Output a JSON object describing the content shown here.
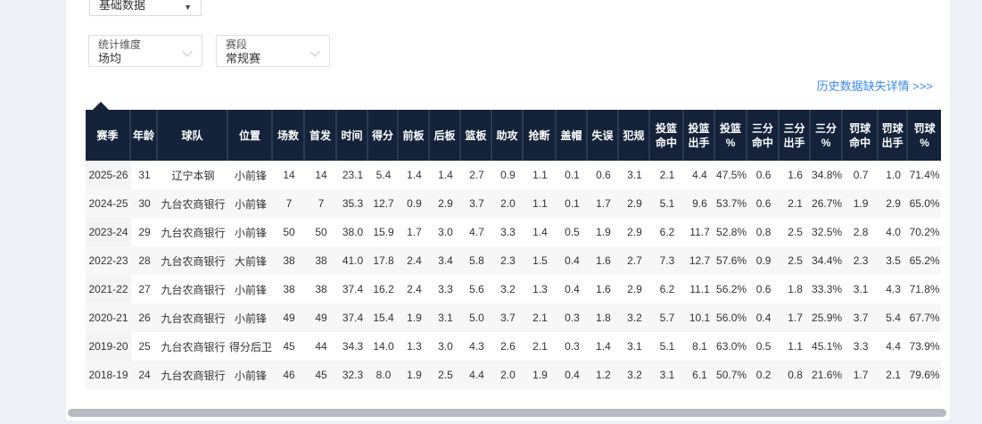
{
  "filters": {
    "base_data": {
      "value": "基础数据"
    },
    "dimension": {
      "label": "统计维度",
      "value": "场均"
    },
    "stage": {
      "label": "赛段",
      "value": "常规赛"
    }
  },
  "history_link": {
    "label": "历史数据缺失详情 >>>"
  },
  "colors": {
    "header_bg": "#142339",
    "link_blue": "#3d8af2",
    "accent_dark_navy": "#142339"
  },
  "icons": {
    "base_select_caret": "caret-down-icon",
    "dimension_caret": "chevron-down-icon",
    "stage_caret": "chevron-down-icon",
    "header_pointer": "caret-up-icon"
  },
  "table": {
    "columns": [
      "赛季",
      "年龄",
      "球队",
      "位置",
      "场数",
      "首发",
      "时间",
      "得分",
      "前板",
      "后板",
      "篮板",
      "助攻",
      "抢断",
      "盖帽",
      "失误",
      "犯规",
      "投篮\n命中",
      "投篮\n出手",
      "投篮\n%",
      "三分\n命中",
      "三分\n出手",
      "三分\n%",
      "罚球\n命中",
      "罚球\n出手",
      "罚球\n%"
    ],
    "rows": [
      [
        "2025-26",
        "31",
        "辽宁本钢",
        "小前锋",
        "14",
        "14",
        "23.1",
        "5.4",
        "1.4",
        "1.4",
        "2.7",
        "0.9",
        "1.1",
        "0.1",
        "0.6",
        "3.1",
        "2.1",
        "4.4",
        "47.5%",
        "0.6",
        "1.6",
        "34.8%",
        "0.7",
        "1.0",
        "71.4%"
      ],
      [
        "2024-25",
        "30",
        "九台农商银行",
        "小前锋",
        "7",
        "7",
        "35.3",
        "12.7",
        "0.9",
        "2.9",
        "3.7",
        "2.0",
        "1.1",
        "0.1",
        "1.7",
        "2.9",
        "5.1",
        "9.6",
        "53.7%",
        "0.6",
        "2.1",
        "26.7%",
        "1.9",
        "2.9",
        "65.0%"
      ],
      [
        "2023-24",
        "29",
        "九台农商银行",
        "小前锋",
        "50",
        "50",
        "38.0",
        "15.9",
        "1.7",
        "3.0",
        "4.7",
        "3.3",
        "1.4",
        "0.5",
        "1.9",
        "2.9",
        "6.2",
        "11.7",
        "52.8%",
        "0.8",
        "2.5",
        "32.5%",
        "2.8",
        "4.0",
        "70.2%"
      ],
      [
        "2022-23",
        "28",
        "九台农商银行",
        "大前锋",
        "38",
        "38",
        "41.0",
        "17.8",
        "2.4",
        "3.4",
        "5.8",
        "2.3",
        "1.5",
        "0.4",
        "1.6",
        "2.7",
        "7.3",
        "12.7",
        "57.6%",
        "0.9",
        "2.5",
        "34.4%",
        "2.3",
        "3.5",
        "65.2%"
      ],
      [
        "2021-22",
        "27",
        "九台农商银行",
        "小前锋",
        "38",
        "38",
        "37.4",
        "16.2",
        "2.4",
        "3.3",
        "5.6",
        "3.2",
        "1.3",
        "0.4",
        "1.6",
        "2.9",
        "6.2",
        "11.1",
        "56.2%",
        "0.6",
        "1.8",
        "33.3%",
        "3.1",
        "4.3",
        "71.8%"
      ],
      [
        "2020-21",
        "26",
        "九台农商银行",
        "小前锋",
        "49",
        "49",
        "37.4",
        "15.4",
        "1.9",
        "3.1",
        "5.0",
        "3.7",
        "2.1",
        "0.3",
        "1.8",
        "3.2",
        "5.7",
        "10.1",
        "56.0%",
        "0.4",
        "1.7",
        "25.9%",
        "3.7",
        "5.4",
        "67.7%"
      ],
      [
        "2019-20",
        "25",
        "九台农商银行",
        "得分后卫",
        "45",
        "44",
        "34.3",
        "14.0",
        "1.3",
        "3.0",
        "4.3",
        "2.6",
        "2.1",
        "0.3",
        "1.4",
        "3.1",
        "5.1",
        "8.1",
        "63.0%",
        "0.5",
        "1.1",
        "45.1%",
        "3.3",
        "4.4",
        "73.9%"
      ],
      [
        "2018-19",
        "24",
        "九台农商银行",
        "小前锋",
        "46",
        "45",
        "32.3",
        "8.0",
        "1.9",
        "2.5",
        "4.4",
        "2.0",
        "1.9",
        "0.4",
        "1.2",
        "3.2",
        "3.1",
        "6.1",
        "50.7%",
        "0.2",
        "0.8",
        "21.6%",
        "1.7",
        "2.1",
        "79.6%"
      ]
    ]
  }
}
